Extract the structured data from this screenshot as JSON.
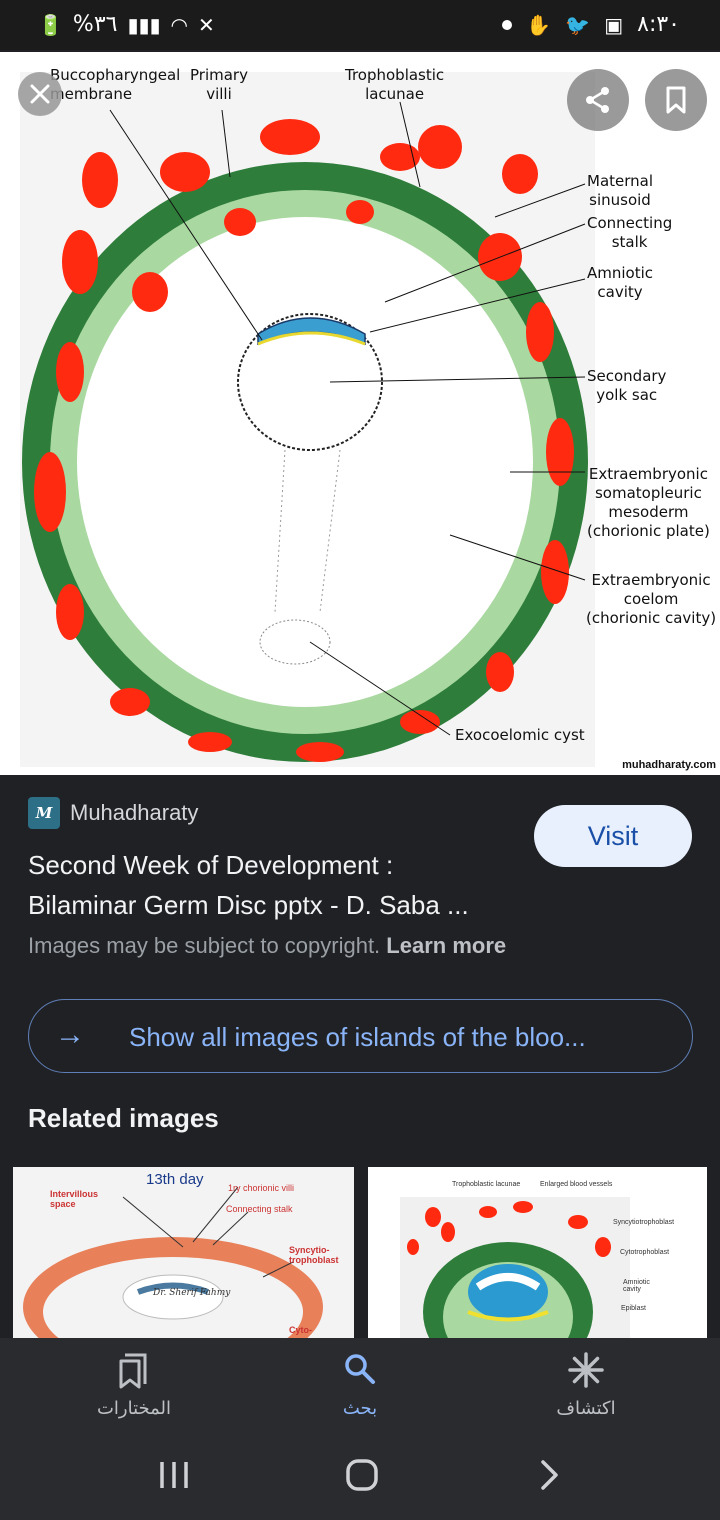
{
  "status_bar": {
    "battery": "%٣٦",
    "time": "٨:٣٠"
  },
  "image": {
    "watermark": "muhadharaty.com",
    "labels": {
      "buccopharyngeal": "Buccopharyngeal\nmembrane",
      "primary_villi": "Primary\nvilli",
      "trophoblastic": "Trophoblastic\nlacunae",
      "maternal": "Maternal\nsinusoid",
      "connecting": "Connecting\nstalk",
      "amniotic": "Amniotic\ncavity",
      "yolk": "Secondary\nyolk sac",
      "somatopleuric": "Extraembryonic\nsomatopleuric\nmesoderm\n(chorionic plate)",
      "coelom": "Extraembryonic\ncoelom\n(chorionic cavity)",
      "cyst": "Exocoelomic cyst"
    }
  },
  "result": {
    "source_logo": "M",
    "source_name": "Muhadharaty",
    "visit_label": "Visit",
    "title": "Second Week of Development : Bilaminar Germ Disc pptx - D. Saba ...",
    "copyright_text": "Images may be subject to copyright.",
    "learn_more": "Learn more",
    "show_all": "Show all images of islands of the bloo...",
    "related_heading": "Related images"
  },
  "thumb1": {
    "title": "13th day",
    "intervillous": "Intervillous\nspace",
    "chorionic": "1ry chorionic villi",
    "stalk": "Connecting stalk",
    "syncytio": "Syncytio-\ntrophoblast",
    "author": "Dr. Sherif Fahmy",
    "cyto": "Cyto-"
  },
  "thumb2": {
    "lacunae": "Trophoblastic lacunae",
    "vessels": "Enlarged blood vessels",
    "syncytio": "Syncytiotrophoblast",
    "cyto": "Cytotrophoblast",
    "amniotic": "Amniotic\ncavity",
    "epiblast": "Epiblast"
  },
  "nav": {
    "favorites": "المختارات",
    "search": "بحث",
    "discover": "اكتشاف"
  },
  "colors": {
    "accent": "#8ab4f8",
    "visit_bg": "#e8f0fe",
    "background": "#202124"
  }
}
